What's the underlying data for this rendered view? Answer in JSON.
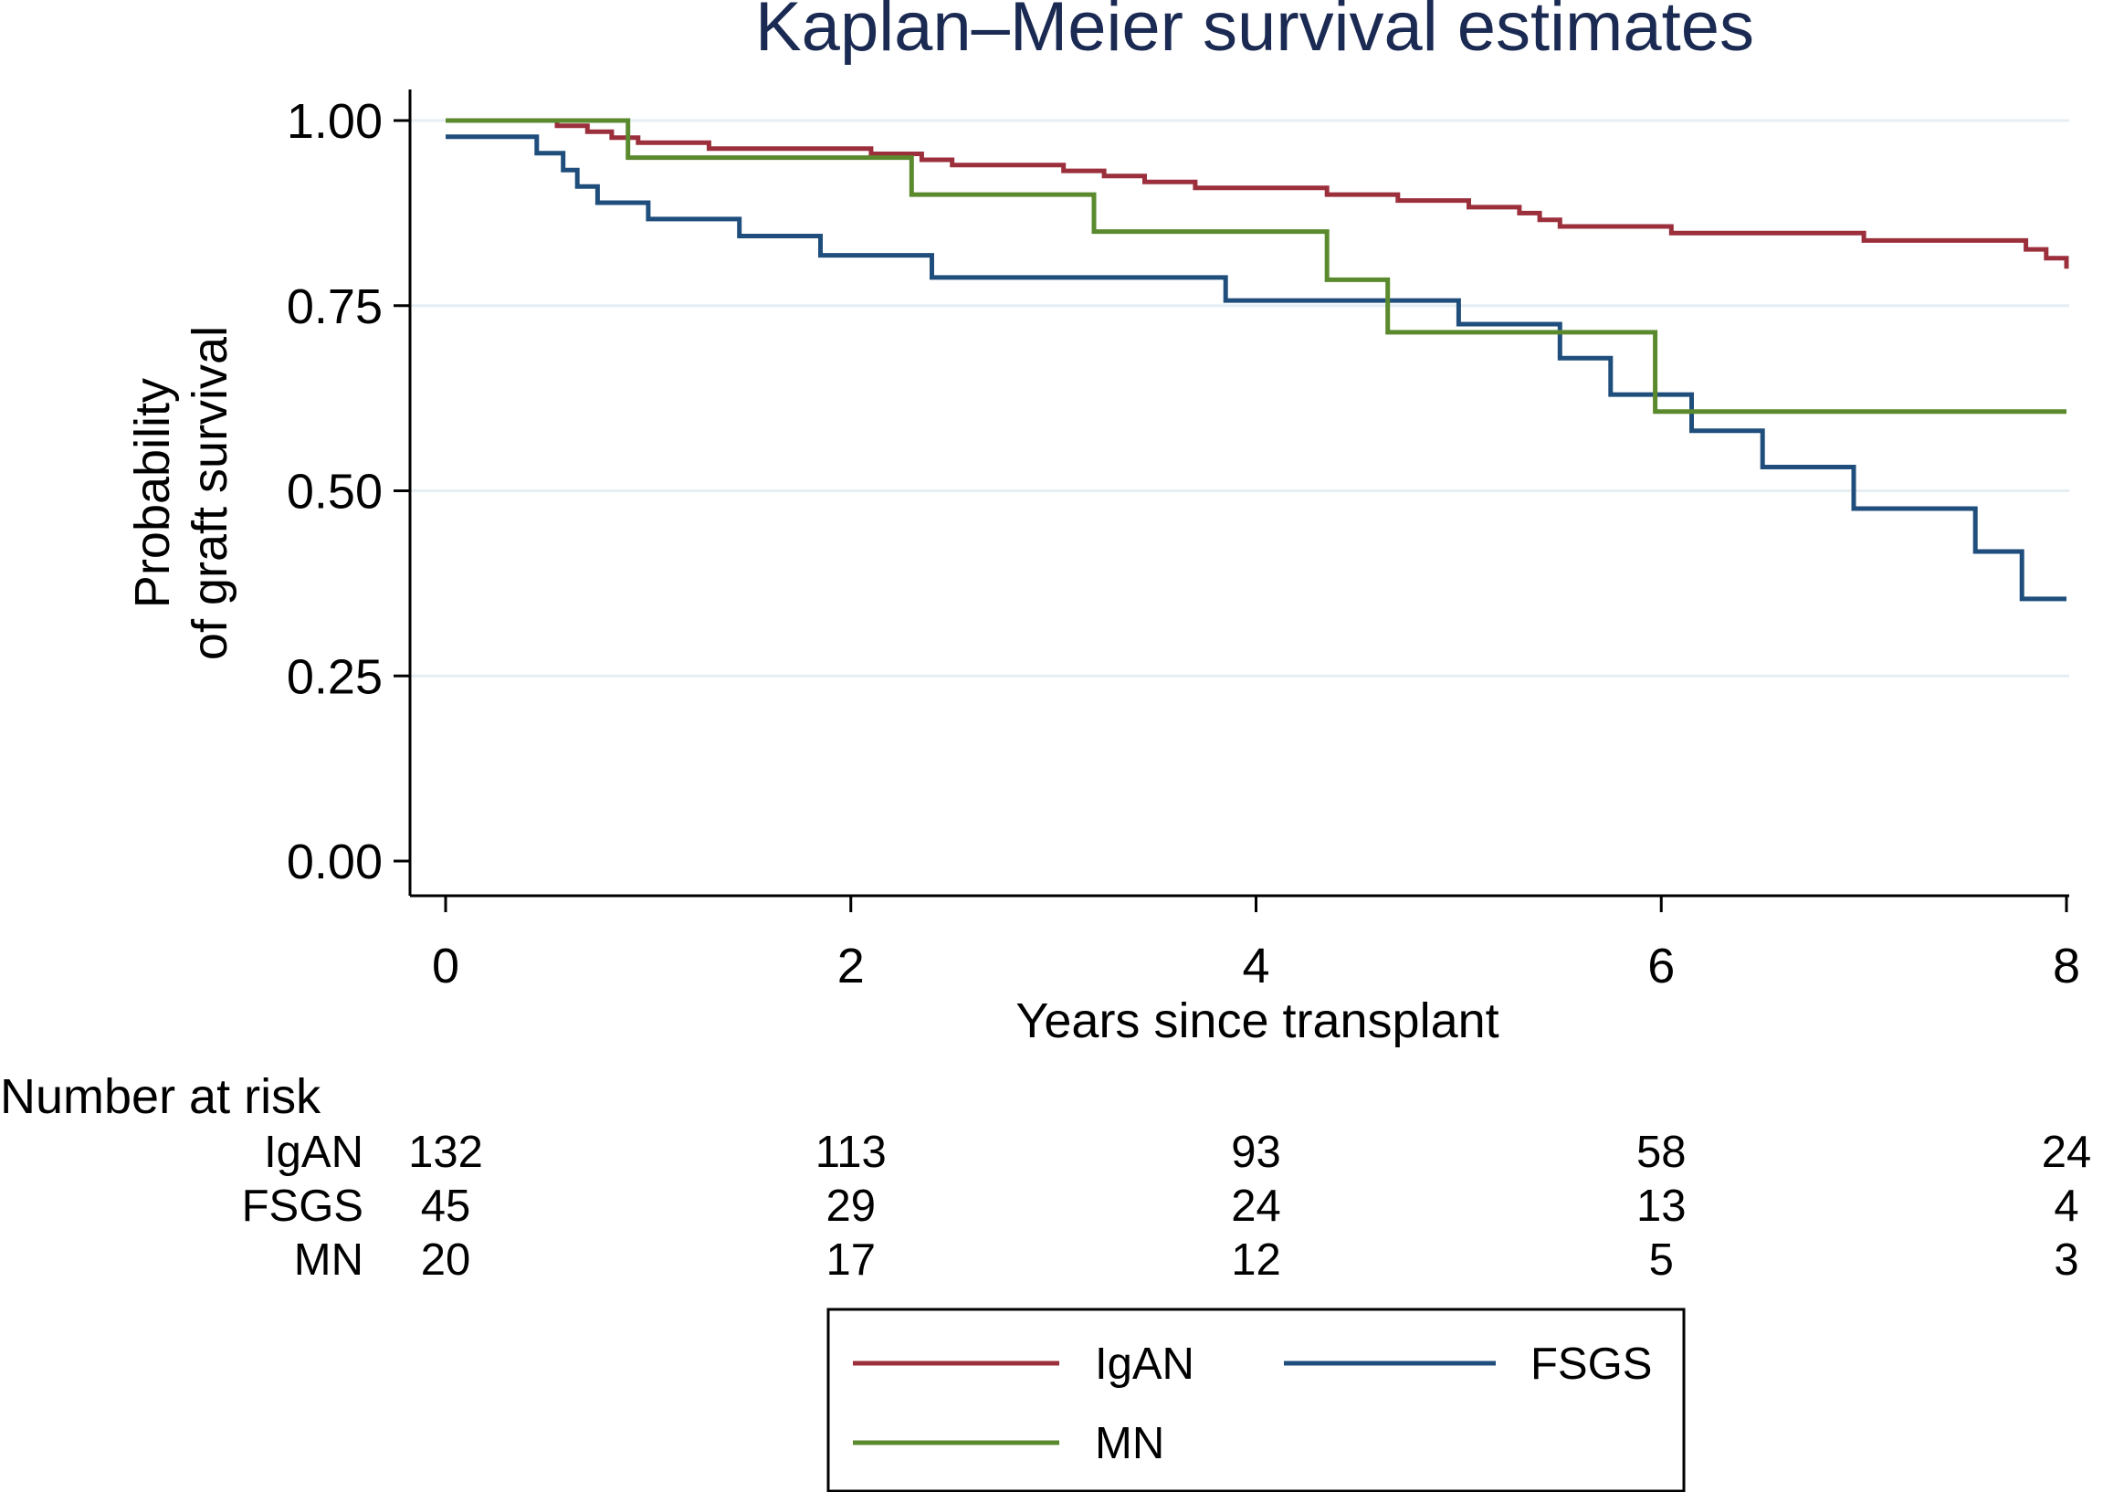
{
  "chart_data": {
    "type": "line",
    "subtype": "kaplan-meier-step",
    "title": "Kaplan–Meier survival estimates",
    "xlabel": "Years since transplant",
    "ylabel": [
      "Probability",
      "of graft survival"
    ],
    "xlim": [
      0,
      8
    ],
    "ylim": [
      0,
      1
    ],
    "x_ticks": [
      0,
      2,
      4,
      6,
      8
    ],
    "x_tick_labels": [
      "0",
      "2",
      "4",
      "6",
      "8"
    ],
    "y_ticks": [
      0,
      0.25,
      0.5,
      0.75,
      1
    ],
    "y_tick_labels": [
      "0.00",
      "0.25",
      "0.50",
      "0.75",
      "1.00"
    ],
    "grid": "horizontal",
    "legend_position": "bottom",
    "series": [
      {
        "name": "IgAN",
        "color": "#9b2f3b",
        "points": [
          [
            0,
            1.0
          ],
          [
            0.55,
            0.993
          ],
          [
            0.7,
            0.985
          ],
          [
            0.82,
            0.977
          ],
          [
            0.95,
            0.97
          ],
          [
            1.3,
            0.962
          ],
          [
            2.1,
            0.955
          ],
          [
            2.35,
            0.947
          ],
          [
            2.5,
            0.94
          ],
          [
            3.05,
            0.932
          ],
          [
            3.25,
            0.925
          ],
          [
            3.45,
            0.917
          ],
          [
            3.7,
            0.909
          ],
          [
            4.35,
            0.9
          ],
          [
            4.7,
            0.892
          ],
          [
            5.05,
            0.883
          ],
          [
            5.3,
            0.875
          ],
          [
            5.4,
            0.866
          ],
          [
            5.5,
            0.857
          ],
          [
            6.05,
            0.848
          ],
          [
            7.0,
            0.838
          ],
          [
            7.8,
            0.826
          ],
          [
            7.9,
            0.814
          ],
          [
            8.0,
            0.8
          ]
        ]
      },
      {
        "name": "FSGS",
        "color": "#1f4e7c",
        "points": [
          [
            0,
            0.978
          ],
          [
            0.45,
            0.956
          ],
          [
            0.58,
            0.933
          ],
          [
            0.65,
            0.911
          ],
          [
            0.75,
            0.889
          ],
          [
            1.0,
            0.867
          ],
          [
            1.45,
            0.844
          ],
          [
            1.85,
            0.818
          ],
          [
            2.4,
            0.788
          ],
          [
            3.85,
            0.757
          ],
          [
            5.0,
            0.725
          ],
          [
            5.5,
            0.679
          ],
          [
            5.75,
            0.63
          ],
          [
            6.15,
            0.581
          ],
          [
            6.5,
            0.532
          ],
          [
            6.95,
            0.476
          ],
          [
            7.55,
            0.418
          ],
          [
            7.78,
            0.354
          ],
          [
            8.0,
            0.354
          ]
        ]
      },
      {
        "name": "MN",
        "color": "#5b8a2e",
        "points": [
          [
            0,
            1.0
          ],
          [
            0.9,
            0.95
          ],
          [
            2.3,
            0.9
          ],
          [
            3.2,
            0.85
          ],
          [
            4.35,
            0.785
          ],
          [
            4.65,
            0.714
          ],
          [
            5.97,
            0.607
          ],
          [
            8.0,
            0.607
          ]
        ]
      }
    ],
    "number_at_risk": {
      "label": "Number at risk",
      "times": [
        0,
        2,
        4,
        6,
        8
      ],
      "rows": [
        {
          "name": "IgAN",
          "values": [
            "132",
            "113",
            "93",
            "58",
            "24"
          ]
        },
        {
          "name": "FSGS",
          "values": [
            "45",
            "29",
            "24",
            "13",
            "4"
          ]
        },
        {
          "name": "MN",
          "values": [
            "20",
            "17",
            "12",
            "5",
            "3"
          ]
        }
      ]
    },
    "legend": {
      "entries": [
        {
          "name": "IgAN",
          "color": "#9b2f3b"
        },
        {
          "name": "FSGS",
          "color": "#1f4e7c"
        },
        {
          "name": "MN",
          "color": "#5b8a2e"
        }
      ]
    }
  }
}
